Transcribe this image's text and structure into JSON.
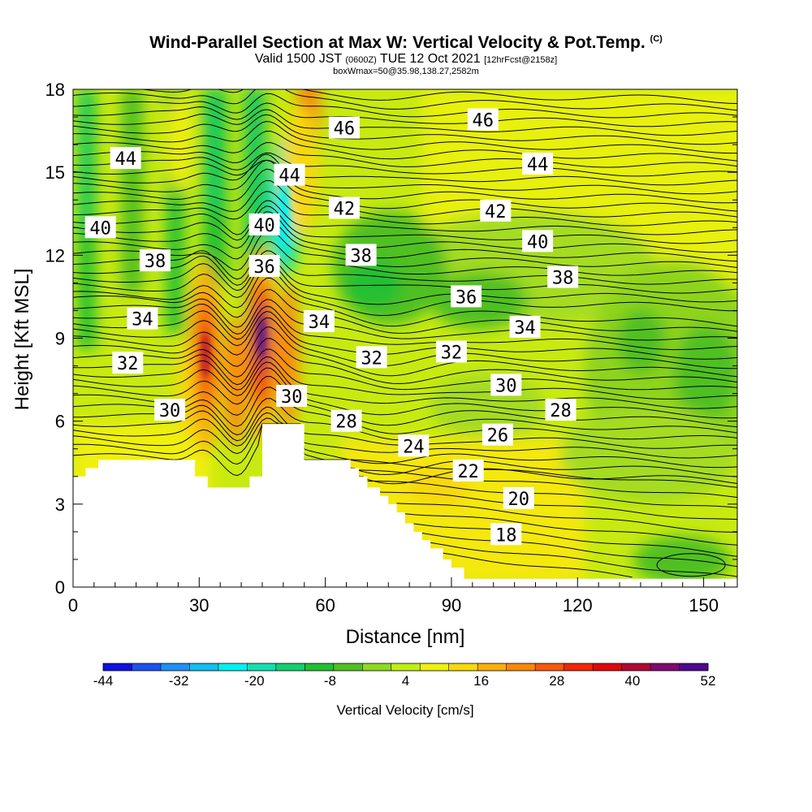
{
  "header": {
    "title": "Wind-Parallel Section at Max W: Vertical Velocity & Pot.Temp.",
    "copyright": "(C)",
    "valid_prefix": "Valid 1500 JST",
    "valid_z": "(0600Z)",
    "valid_date": "TUE 12 Oct 2021",
    "forecast": "[12hrFcst@2158z]",
    "box_info": "boxWmax=50@35.98,138.27,2582m"
  },
  "chart_data": {
    "type": "heatmap",
    "xlabel": "Distance [nm]",
    "ylabel": "Height [Kft MSL]",
    "xlim": [
      0,
      158
    ],
    "ylim": [
      0,
      18
    ],
    "x_ticks": [
      0,
      30,
      60,
      90,
      120,
      150
    ],
    "y_ticks": [
      0,
      3,
      6,
      9,
      12,
      15,
      18
    ],
    "colorbar": {
      "title": "Vertical Velocity [cm/s]",
      "tick_labels": [
        "-44",
        "-32",
        "-20",
        "-8",
        "4",
        "16",
        "28",
        "40",
        "52"
      ],
      "colors": [
        "#1010e0",
        "#1e50f0",
        "#1e90f5",
        "#10c0f0",
        "#00f0f0",
        "#10e0b0",
        "#10d070",
        "#20c030",
        "#50c020",
        "#90d820",
        "#c0ee10",
        "#f0f010",
        "#f8d808",
        "#f8b008",
        "#f88808",
        "#f85808",
        "#f02808",
        "#e00808",
        "#b00838",
        "#800870",
        "#500890"
      ]
    },
    "contour_labels": [
      {
        "value": "46",
        "x": 64.5,
        "y": 16.6
      },
      {
        "value": "46",
        "x": 97.5,
        "y": 16.9
      },
      {
        "value": "44",
        "x": 12.5,
        "y": 15.5
      },
      {
        "value": "44",
        "x": 51.5,
        "y": 14.9
      },
      {
        "value": "44",
        "x": 110.5,
        "y": 15.3
      },
      {
        "value": "42",
        "x": 64.5,
        "y": 13.7
      },
      {
        "value": "42",
        "x": 100.5,
        "y": 13.6
      },
      {
        "value": "40",
        "x": 6.5,
        "y": 13.0
      },
      {
        "value": "40",
        "x": 45.5,
        "y": 13.1
      },
      {
        "value": "40",
        "x": 110.5,
        "y": 12.5
      },
      {
        "value": "38",
        "x": 19.5,
        "y": 11.8
      },
      {
        "value": "38",
        "x": 68.5,
        "y": 12.0
      },
      {
        "value": "38",
        "x": 116.5,
        "y": 11.2
      },
      {
        "value": "36",
        "x": 45.5,
        "y": 11.6
      },
      {
        "value": "36",
        "x": 93.5,
        "y": 10.5
      },
      {
        "value": "34",
        "x": 16.5,
        "y": 9.7
      },
      {
        "value": "34",
        "x": 58.5,
        "y": 9.6
      },
      {
        "value": "34",
        "x": 107.5,
        "y": 9.4
      },
      {
        "value": "32",
        "x": 13.0,
        "y": 8.1
      },
      {
        "value": "32",
        "x": 71.0,
        "y": 8.3
      },
      {
        "value": "32",
        "x": 90.0,
        "y": 8.5
      },
      {
        "value": "30",
        "x": 23.0,
        "y": 6.4
      },
      {
        "value": "30",
        "x": 52.0,
        "y": 6.9
      },
      {
        "value": "30",
        "x": 103.0,
        "y": 7.3
      },
      {
        "value": "28",
        "x": 65.0,
        "y": 6.0
      },
      {
        "value": "28",
        "x": 116.0,
        "y": 6.4
      },
      {
        "value": "26",
        "x": 101.0,
        "y": 5.5
      },
      {
        "value": "24",
        "x": 81.0,
        "y": 5.1
      },
      {
        "value": "22",
        "x": 94.0,
        "y": 4.2
      },
      {
        "value": "20",
        "x": 106.0,
        "y": 3.2
      },
      {
        "value": "18",
        "x": 103.0,
        "y": 1.9
      }
    ],
    "terrain": [
      [
        0,
        4.0
      ],
      [
        3,
        4.0
      ],
      [
        3,
        4.3
      ],
      [
        6,
        4.3
      ],
      [
        6,
        4.6
      ],
      [
        29,
        4.6
      ],
      [
        29,
        4.0
      ],
      [
        32,
        4.0
      ],
      [
        32,
        3.6
      ],
      [
        42,
        3.6
      ],
      [
        42,
        4.0
      ],
      [
        45,
        4.0
      ],
      [
        45,
        5.9
      ],
      [
        55,
        5.9
      ],
      [
        55,
        4.6
      ],
      [
        66,
        4.6
      ],
      [
        66,
        4.3
      ],
      [
        68,
        4.3
      ],
      [
        68,
        4.0
      ],
      [
        70,
        4.0
      ],
      [
        70,
        3.6
      ],
      [
        73,
        3.6
      ],
      [
        73,
        3.3
      ],
      [
        75,
        3.3
      ],
      [
        75,
        3.0
      ],
      [
        77,
        3.0
      ],
      [
        77,
        2.7
      ],
      [
        79,
        2.7
      ],
      [
        79,
        2.3
      ],
      [
        81,
        2.3
      ],
      [
        81,
        2.0
      ],
      [
        83,
        2.0
      ],
      [
        83,
        1.7
      ],
      [
        85,
        1.7
      ],
      [
        85,
        1.4
      ],
      [
        88,
        1.4
      ],
      [
        88,
        1.0
      ],
      [
        90,
        1.0
      ],
      [
        90,
        0.7
      ],
      [
        93,
        0.7
      ],
      [
        93,
        0.3
      ],
      [
        158,
        0.3
      ]
    ]
  }
}
